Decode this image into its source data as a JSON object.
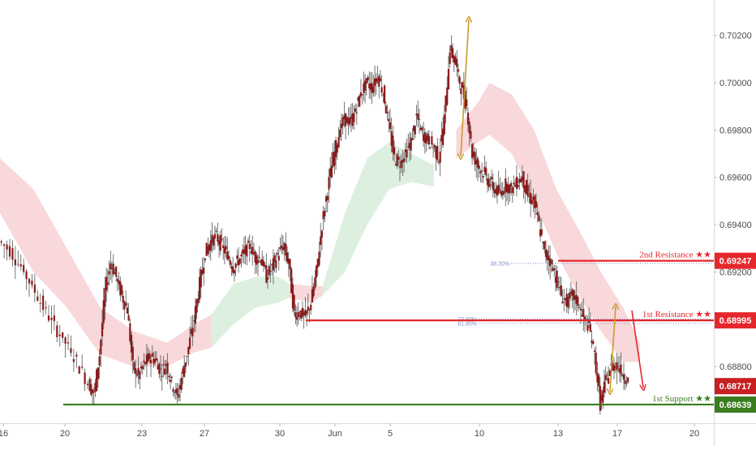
{
  "chart_data": {
    "type": "candlestick",
    "x_axis": {
      "tick_labels": [
        "16",
        "20",
        "23",
        "27",
        "30",
        "Jun",
        "5",
        "10",
        "13",
        "17",
        "20"
      ]
    },
    "y_axis": {
      "side": "right",
      "range": [
        0.6856,
        0.7035
      ],
      "tick_values": [
        0.688,
        0.69,
        0.692,
        0.694,
        0.696,
        0.698,
        0.7,
        0.702
      ],
      "tick_labels": [
        "0.68800",
        "0.69000",
        "0.69200",
        "0.69400",
        "0.69600",
        "0.69800",
        "0.70000",
        "0.70200"
      ]
    },
    "price_path": [
      [
        0,
        0.6933
      ],
      [
        2,
        0.6929
      ],
      [
        4,
        0.6922
      ],
      [
        6,
        0.6914
      ],
      [
        8,
        0.6905
      ],
      [
        10,
        0.6897
      ],
      [
        12,
        0.689
      ],
      [
        14,
        0.6882
      ],
      [
        16,
        0.6873
      ],
      [
        17,
        0.6868
      ],
      [
        18,
        0.6885
      ],
      [
        19,
        0.6912
      ],
      [
        20,
        0.6924
      ],
      [
        21,
        0.6918
      ],
      [
        22,
        0.691
      ],
      [
        23,
        0.6904
      ],
      [
        24,
        0.688
      ],
      [
        25,
        0.6876
      ],
      [
        26,
        0.6881
      ],
      [
        27,
        0.6884
      ],
      [
        28,
        0.6883
      ],
      [
        29,
        0.6878
      ],
      [
        30,
        0.6881
      ],
      [
        31,
        0.6873
      ],
      [
        32,
        0.6867
      ],
      [
        33,
        0.6878
      ],
      [
        34,
        0.6888
      ],
      [
        35,
        0.69
      ],
      [
        36,
        0.6915
      ],
      [
        37,
        0.6928
      ],
      [
        38,
        0.6933
      ],
      [
        39,
        0.6935
      ],
      [
        40,
        0.6931
      ],
      [
        41,
        0.6927
      ],
      [
        42,
        0.6922
      ],
      [
        43,
        0.6925
      ],
      [
        44,
        0.6928
      ],
      [
        45,
        0.6931
      ],
      [
        46,
        0.6926
      ],
      [
        47,
        0.6926
      ],
      [
        48,
        0.6918
      ],
      [
        49,
        0.6922
      ],
      [
        50,
        0.6927
      ],
      [
        51,
        0.6931
      ],
      [
        52,
        0.6924
      ],
      [
        53,
        0.6902
      ],
      [
        54,
        0.6903
      ],
      [
        55,
        0.6901
      ],
      [
        56,
        0.6907
      ],
      [
        57,
        0.692
      ],
      [
        58,
        0.694
      ],
      [
        59,
        0.6955
      ],
      [
        60,
        0.6968
      ],
      [
        61,
        0.6978
      ],
      [
        62,
        0.6985
      ],
      [
        63,
        0.6983
      ],
      [
        64,
        0.6988
      ],
      [
        65,
        0.6996
      ],
      [
        66,
        0.7
      ],
      [
        67,
        0.6998
      ],
      [
        68,
        0.7003
      ],
      [
        69,
        0.6996
      ],
      [
        70,
        0.6982
      ],
      [
        71,
        0.6968
      ],
      [
        72,
        0.6966
      ],
      [
        73,
        0.697
      ],
      [
        74,
        0.6975
      ],
      [
        75,
        0.6986
      ],
      [
        76,
        0.6978
      ],
      [
        77,
        0.6976
      ],
      [
        78,
        0.6973
      ],
      [
        79,
        0.6968
      ],
      [
        80,
        0.6985
      ],
      [
        81,
        0.7015
      ],
      [
        82,
        0.7008
      ],
      [
        83,
        0.6998
      ],
      [
        84,
        0.699
      ],
      [
        85,
        0.697
      ],
      [
        86,
        0.6965
      ],
      [
        87,
        0.6962
      ],
      [
        88,
        0.6958
      ],
      [
        89,
        0.6955
      ],
      [
        90,
        0.6953
      ],
      [
        91,
        0.6957
      ],
      [
        92,
        0.6955
      ],
      [
        93,
        0.6958
      ],
      [
        94,
        0.696
      ],
      [
        95,
        0.6952
      ],
      [
        96,
        0.695
      ],
      [
        97,
        0.694
      ],
      [
        98,
        0.6928
      ],
      [
        99,
        0.6925
      ],
      [
        100,
        0.6918
      ],
      [
        101,
        0.691
      ],
      [
        102,
        0.6907
      ],
      [
        103,
        0.691
      ],
      [
        104,
        0.6907
      ],
      [
        105,
        0.69
      ],
      [
        106,
        0.6897
      ],
      [
        107,
        0.6885
      ],
      [
        108,
        0.6864
      ],
      [
        109,
        0.6874
      ],
      [
        110,
        0.688
      ],
      [
        111,
        0.6881
      ],
      [
        112,
        0.6877
      ],
      [
        113,
        0.6874
      ]
    ],
    "cloud": {
      "red_color": "#f7d4d6",
      "green_color": "#d9eedd"
    },
    "horizontal_levels": [
      {
        "name": "2nd Resistance ★★",
        "value": 0.69247,
        "value_label": "0.69247",
        "color": "#e5262b"
      },
      {
        "name": "1st Resistance ★★",
        "value": 0.68995,
        "value_label": "0.68995",
        "color": "#e5262b"
      },
      {
        "name": "1st Support ★★",
        "value": 0.68639,
        "value_label": "0.68639",
        "color": "#3a7d1e"
      }
    ],
    "fib_levels": [
      {
        "label": "38.20%",
        "value": 0.69236
      },
      {
        "label": "23.60%",
        "value": 0.69001
      },
      {
        "label": "61.80%",
        "value": 0.68982
      }
    ],
    "current_price": {
      "value": 0.68717,
      "label": "0.68717",
      "color": "#c71f22"
    },
    "colors": {
      "candle": "#8b1a1a",
      "wick": "#555555",
      "arrow_gold": "#c99a2e",
      "arrow_red": "#e5262b",
      "fib": "#7b8cc9",
      "axis_text": "#4a4a4a",
      "grid": "#ececec"
    }
  }
}
